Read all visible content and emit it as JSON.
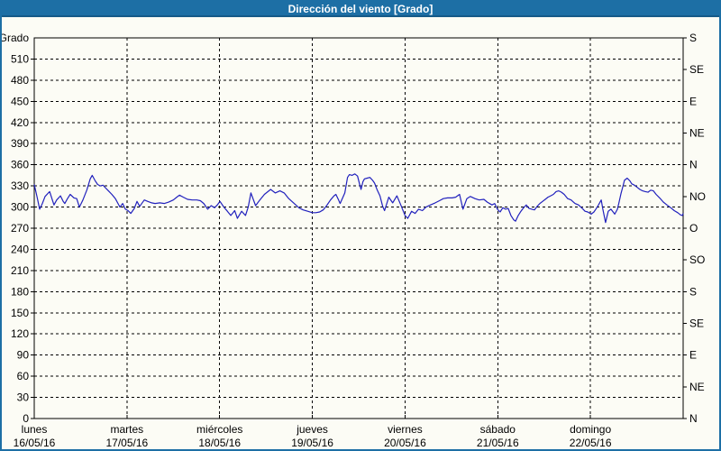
{
  "header": {
    "title": "Dirección del viento [Grado]"
  },
  "colors": {
    "header_bg": "#1d6fa5",
    "frame": "#1d6fa5",
    "background": "#fcfcf5",
    "line": "#2121bd",
    "grid": "#000000",
    "text": "#000000"
  },
  "chart_data": {
    "type": "line",
    "title": "Dirección del viento [Grado]",
    "ylabel": "Grado",
    "ylim": [
      0,
      540
    ],
    "y_tick_interval": 30,
    "y_ticks": [
      0,
      30,
      60,
      90,
      120,
      150,
      180,
      210,
      240,
      270,
      300,
      330,
      360,
      390,
      420,
      450,
      480,
      510
    ],
    "right_axis": {
      "tick_interval_deg": 45,
      "labels_bottom_to_top": [
        "N",
        "NE",
        "E",
        "SE",
        "S",
        "SO",
        "O",
        "NO",
        "N",
        "NE",
        "E",
        "SE",
        "S"
      ]
    },
    "x_axis": {
      "hours_total": 168,
      "days": [
        {
          "name": "lunes",
          "date": "16/05/16"
        },
        {
          "name": "martes",
          "date": "17/05/16"
        },
        {
          "name": "miércoles",
          "date": "18/05/16"
        },
        {
          "name": "jueves",
          "date": "19/05/16"
        },
        {
          "name": "viernes",
          "date": "20/05/16"
        },
        {
          "name": "sábado",
          "date": "21/05/16"
        },
        {
          "name": "domingo",
          "date": "22/05/16"
        }
      ]
    },
    "grid": "dashed",
    "legend": "none",
    "series": [
      {
        "name": "Dirección del viento",
        "color": "#2121bd",
        "points_hours_deg": [
          [
            0,
            332
          ],
          [
            0.7,
            315
          ],
          [
            1.4,
            297
          ],
          [
            2.1,
            305
          ],
          [
            2.8,
            315
          ],
          [
            4,
            322
          ],
          [
            4.7,
            310
          ],
          [
            5.1,
            303
          ],
          [
            5.8,
            310
          ],
          [
            6.8,
            316
          ],
          [
            7.5,
            308
          ],
          [
            7.9,
            305
          ],
          [
            8.6,
            312
          ],
          [
            9.3,
            318
          ],
          [
            10.3,
            313
          ],
          [
            11,
            312
          ],
          [
            11.7,
            300
          ],
          [
            12.6,
            310
          ],
          [
            13.6,
            324
          ],
          [
            14.5,
            340
          ],
          [
            15,
            345
          ],
          [
            15.7,
            338
          ],
          [
            16.4,
            332
          ],
          [
            17.1,
            330
          ],
          [
            17.8,
            331
          ],
          [
            18.5,
            327
          ],
          [
            19.2,
            323
          ],
          [
            20.1,
            318
          ],
          [
            21,
            312
          ],
          [
            22.2,
            300
          ],
          [
            22.9,
            305
          ],
          [
            23.6,
            297
          ],
          [
            24.3,
            295
          ],
          [
            25,
            291
          ],
          [
            25.9,
            298
          ],
          [
            26.6,
            308
          ],
          [
            27.3,
            301
          ],
          [
            28.5,
            310
          ],
          [
            29.4,
            308
          ],
          [
            30.4,
            306
          ],
          [
            31.3,
            305
          ],
          [
            32.5,
            306
          ],
          [
            33.7,
            305
          ],
          [
            34.8,
            307
          ],
          [
            36,
            310
          ],
          [
            36.9,
            314
          ],
          [
            37.6,
            317
          ],
          [
            38.6,
            314
          ],
          [
            39.7,
            311
          ],
          [
            40.9,
            310
          ],
          [
            42.1,
            310
          ],
          [
            43,
            309
          ],
          [
            43.9,
            305
          ],
          [
            44.9,
            297
          ],
          [
            45.8,
            302
          ],
          [
            46.7,
            299
          ],
          [
            47.4,
            303
          ],
          [
            48.1,
            308
          ],
          [
            49.1,
            300
          ],
          [
            50,
            294
          ],
          [
            50.9,
            288
          ],
          [
            51.9,
            295
          ],
          [
            52.6,
            284
          ],
          [
            53.7,
            294
          ],
          [
            54.7,
            288
          ],
          [
            55.4,
            300
          ],
          [
            56.1,
            320
          ],
          [
            57.3,
            302
          ],
          [
            58.4,
            310
          ],
          [
            59.6,
            318
          ],
          [
            61.2,
            325
          ],
          [
            62.4,
            320
          ],
          [
            63.6,
            323
          ],
          [
            64.7,
            320
          ],
          [
            65.9,
            312
          ],
          [
            67.3,
            305
          ],
          [
            68.5,
            299
          ],
          [
            69.6,
            296
          ],
          [
            70.8,
            294
          ],
          [
            72,
            292
          ],
          [
            72.9,
            292
          ],
          [
            73.9,
            293
          ],
          [
            74.8,
            296
          ],
          [
            75.7,
            302
          ],
          [
            76.7,
            310
          ],
          [
            77.6,
            316
          ],
          [
            78.1,
            318
          ],
          [
            78.8,
            310
          ],
          [
            79.2,
            305
          ],
          [
            80.4,
            320
          ],
          [
            81.1,
            342
          ],
          [
            81.6,
            346
          ],
          [
            82.3,
            345
          ],
          [
            83,
            347
          ],
          [
            83.7,
            344
          ],
          [
            84.2,
            333
          ],
          [
            84.6,
            325
          ],
          [
            85.1,
            336
          ],
          [
            85.5,
            340
          ],
          [
            86.2,
            341
          ],
          [
            86.9,
            342
          ],
          [
            87.6,
            338
          ],
          [
            88.1,
            334
          ],
          [
            88.8,
            324
          ],
          [
            89.5,
            316
          ],
          [
            90.2,
            301
          ],
          [
            90.7,
            295
          ],
          [
            91.8,
            314
          ],
          [
            92.8,
            306
          ],
          [
            93.9,
            316
          ],
          [
            94.9,
            303
          ],
          [
            96,
            288
          ],
          [
            96.7,
            284
          ],
          [
            97.7,
            294
          ],
          [
            98.6,
            291
          ],
          [
            99.5,
            297
          ],
          [
            100.5,
            295
          ],
          [
            101.4,
            300
          ],
          [
            102.6,
            303
          ],
          [
            103.8,
            306
          ],
          [
            104.9,
            309
          ],
          [
            105.9,
            312
          ],
          [
            107,
            313
          ],
          [
            108.2,
            313
          ],
          [
            109.1,
            314
          ],
          [
            110.1,
            318
          ],
          [
            111,
            297
          ],
          [
            112,
            312
          ],
          [
            112.9,
            315
          ],
          [
            114.1,
            312
          ],
          [
            115.2,
            310
          ],
          [
            116.4,
            311
          ],
          [
            117.3,
            307
          ],
          [
            118.5,
            303
          ],
          [
            119.2,
            305
          ],
          [
            119.9,
            297
          ],
          [
            120.6,
            293
          ],
          [
            121.3,
            299
          ],
          [
            122,
            297
          ],
          [
            122.7,
            298
          ],
          [
            123.4,
            288
          ],
          [
            124.1,
            282
          ],
          [
            124.6,
            280
          ],
          [
            125.3,
            288
          ],
          [
            126,
            294
          ],
          [
            126.7,
            299
          ],
          [
            127.4,
            303
          ],
          [
            128.1,
            298
          ],
          [
            128.8,
            297
          ],
          [
            129.5,
            296
          ],
          [
            130.2,
            301
          ],
          [
            130.9,
            305
          ],
          [
            131.6,
            308
          ],
          [
            132.3,
            311
          ],
          [
            133,
            314
          ],
          [
            133.7,
            316
          ],
          [
            134.4,
            318
          ],
          [
            135.1,
            322
          ],
          [
            135.8,
            323
          ],
          [
            136.5,
            321
          ],
          [
            137.2,
            318
          ],
          [
            138.1,
            312
          ],
          [
            139,
            310
          ],
          [
            140,
            305
          ],
          [
            140.9,
            303
          ],
          [
            141.9,
            298
          ],
          [
            142.6,
            294
          ],
          [
            143.3,
            293
          ],
          [
            144.2,
            290
          ],
          [
            144.9,
            293
          ],
          [
            145.4,
            297
          ],
          [
            146.1,
            303
          ],
          [
            146.8,
            310
          ],
          [
            147.2,
            297
          ],
          [
            147.9,
            278
          ],
          [
            148.6,
            294
          ],
          [
            149.3,
            297
          ],
          [
            150.3,
            290
          ],
          [
            151,
            297
          ],
          [
            151.4,
            307
          ],
          [
            151.9,
            319
          ],
          [
            152.4,
            329
          ],
          [
            152.8,
            338
          ],
          [
            153.5,
            341
          ],
          [
            154.2,
            337
          ],
          [
            154.7,
            333
          ],
          [
            155.4,
            331
          ],
          [
            156.1,
            328
          ],
          [
            156.8,
            325
          ],
          [
            157.5,
            323
          ],
          [
            158.2,
            322
          ],
          [
            158.9,
            321
          ],
          [
            159.6,
            324
          ],
          [
            160.3,
            323
          ],
          [
            161,
            318
          ],
          [
            161.9,
            313
          ],
          [
            162.9,
            307
          ],
          [
            163.8,
            303
          ],
          [
            164.8,
            299
          ],
          [
            165.7,
            295
          ],
          [
            166.6,
            292
          ],
          [
            167.3,
            289
          ],
          [
            167.8,
            288
          ],
          [
            168,
            291
          ]
        ]
      }
    ]
  }
}
